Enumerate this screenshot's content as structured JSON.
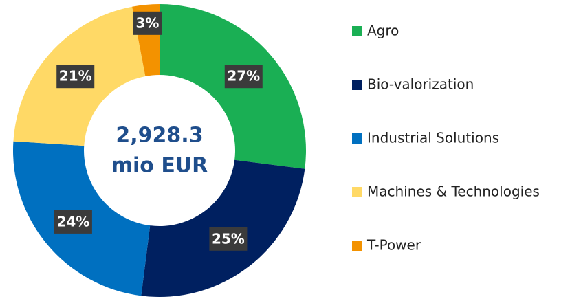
{
  "chart_data": {
    "type": "pie",
    "categories": [
      "Agro",
      "Bio-valorization",
      "Industrial Solutions",
      "Machines & Technologies",
      "T-Power"
    ],
    "values": [
      27,
      25,
      24,
      21,
      3
    ],
    "value_labels": [
      "27%",
      "25%",
      "24%",
      "21%",
      "3%"
    ],
    "colors": [
      "#1aaf54",
      "#002060",
      "#0070c0",
      "#ffd966",
      "#f39200"
    ],
    "center_label": [
      "2,928.3",
      "mio EUR"
    ],
    "legend": "right"
  }
}
